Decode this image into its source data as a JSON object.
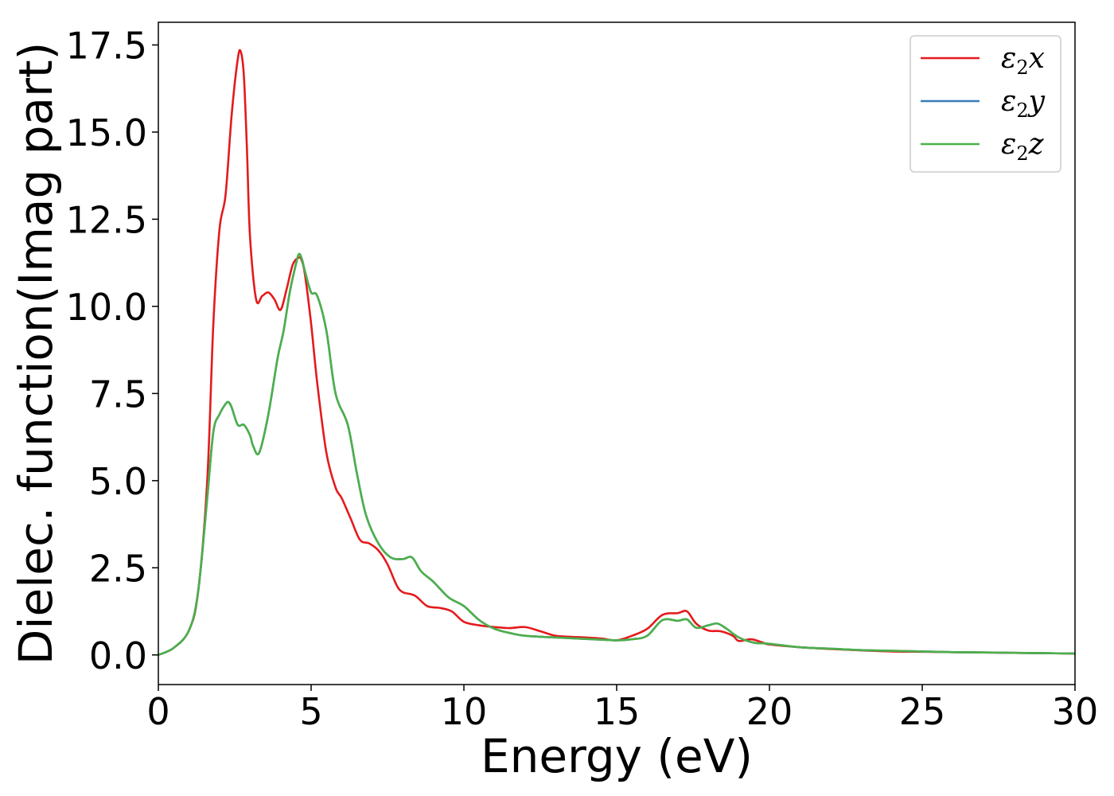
{
  "chart_data": {
    "type": "line",
    "xlabel": "Energy (eV)",
    "ylabel": "Dielec. function(Imag part)",
    "xlim": [
      0,
      30
    ],
    "ylim": [
      -0.85,
      18.15
    ],
    "xticks": [
      0,
      5,
      10,
      15,
      20,
      25,
      30
    ],
    "xtick_labels": [
      "0",
      "5",
      "10",
      "15",
      "20",
      "25",
      "30"
    ],
    "yticks": [
      0,
      2.5,
      5,
      7.5,
      10,
      12.5,
      15,
      17.5
    ],
    "ytick_labels": [
      "0.0",
      "2.5",
      "5.0",
      "7.5",
      "10.0",
      "12.5",
      "15.0",
      "17.5"
    ],
    "grid": false,
    "legend_position": "top-right",
    "series": [
      {
        "name": "ε2x",
        "legend_base": "ε",
        "legend_sub": "2",
        "legend_suffix": "x",
        "color": "#e41a1c",
        "x": [
          0,
          0.5,
          1.0,
          1.3,
          1.6,
          1.8,
          2.0,
          2.2,
          2.4,
          2.6,
          2.7,
          2.8,
          2.9,
          3.0,
          3.2,
          3.4,
          3.6,
          3.8,
          4.0,
          4.2,
          4.4,
          4.6,
          4.7,
          4.8,
          5.0,
          5.2,
          5.5,
          5.8,
          6.0,
          6.3,
          6.6,
          6.9,
          7.2,
          7.5,
          7.8,
          8.0,
          8.4,
          8.8,
          9.2,
          9.6,
          10.0,
          10.5,
          11.0,
          11.5,
          12.0,
          12.5,
          13.0,
          13.5,
          14.0,
          14.5,
          15.0,
          15.5,
          16.0,
          16.5,
          17.0,
          17.3,
          17.6,
          18.0,
          18.4,
          18.8,
          19.0,
          19.4,
          19.8,
          20.0,
          21.0,
          22.0,
          23.0,
          24.0,
          25.0,
          26.0,
          27.0,
          28.0,
          29.0,
          30.0
        ],
        "values": [
          0.0,
          0.2,
          0.7,
          1.8,
          5.0,
          9.5,
          12.2,
          13.2,
          15.5,
          17.1,
          17.3,
          16.6,
          14.5,
          12.0,
          10.2,
          10.3,
          10.4,
          10.2,
          9.9,
          10.5,
          11.2,
          11.4,
          11.3,
          10.9,
          9.5,
          7.8,
          5.8,
          4.8,
          4.5,
          3.9,
          3.3,
          3.2,
          3.0,
          2.6,
          2.0,
          1.8,
          1.7,
          1.4,
          1.35,
          1.25,
          0.95,
          0.85,
          0.8,
          0.77,
          0.8,
          0.68,
          0.55,
          0.52,
          0.5,
          0.47,
          0.42,
          0.55,
          0.75,
          1.15,
          1.2,
          1.25,
          0.9,
          0.7,
          0.68,
          0.55,
          0.4,
          0.45,
          0.35,
          0.3,
          0.22,
          0.17,
          0.13,
          0.1,
          0.09,
          0.08,
          0.07,
          0.06,
          0.05,
          0.04
        ]
      },
      {
        "name": "ε2y",
        "legend_base": "ε",
        "legend_sub": "2",
        "legend_suffix": "y",
        "color": "#377eb8",
        "x": [
          0,
          0.5,
          1.0,
          1.3,
          1.6,
          1.8,
          2.0,
          2.2,
          2.3,
          2.4,
          2.6,
          2.8,
          3.0,
          3.1,
          3.3,
          3.6,
          3.9,
          4.1,
          4.3,
          4.5,
          4.6,
          4.7,
          4.8,
          5.0,
          5.2,
          5.5,
          5.8,
          6.2,
          6.5,
          6.8,
          7.2,
          7.6,
          8.0,
          8.3,
          8.6,
          9.0,
          9.5,
          10.0,
          10.5,
          11.0,
          11.5,
          12.0,
          13.0,
          14.0,
          15.0,
          15.5,
          16.0,
          16.5,
          17.0,
          17.3,
          17.6,
          18.0,
          18.3,
          18.6,
          19.0,
          19.5,
          20.0,
          21.0,
          22.0,
          23.0,
          24.0,
          25.0,
          26.0,
          27.0,
          28.0,
          29.0,
          30.0
        ],
        "values": [
          0.0,
          0.2,
          0.7,
          1.8,
          4.5,
          6.4,
          6.9,
          7.2,
          7.25,
          7.1,
          6.6,
          6.6,
          6.3,
          6.0,
          5.8,
          6.9,
          8.5,
          9.3,
          10.4,
          11.2,
          11.5,
          11.35,
          11.0,
          10.4,
          10.3,
          9.3,
          7.5,
          6.6,
          5.2,
          4.0,
          3.2,
          2.8,
          2.75,
          2.8,
          2.4,
          2.1,
          1.65,
          1.4,
          1.0,
          0.75,
          0.63,
          0.55,
          0.5,
          0.46,
          0.42,
          0.45,
          0.55,
          1.0,
          0.98,
          1.02,
          0.78,
          0.85,
          0.9,
          0.75,
          0.5,
          0.35,
          0.32,
          0.22,
          0.18,
          0.14,
          0.12,
          0.1,
          0.08,
          0.07,
          0.06,
          0.05,
          0.04
        ]
      },
      {
        "name": "ε2z",
        "legend_base": "ε",
        "legend_sub": "2",
        "legend_suffix": "z",
        "color": "#4daf4a",
        "x": [
          0,
          0.5,
          1.0,
          1.3,
          1.6,
          1.8,
          2.0,
          2.2,
          2.3,
          2.4,
          2.6,
          2.8,
          3.0,
          3.1,
          3.3,
          3.6,
          3.9,
          4.1,
          4.3,
          4.5,
          4.6,
          4.7,
          4.8,
          5.0,
          5.2,
          5.5,
          5.8,
          6.2,
          6.5,
          6.8,
          7.2,
          7.6,
          8.0,
          8.3,
          8.6,
          9.0,
          9.5,
          10.0,
          10.5,
          11.0,
          11.5,
          12.0,
          13.0,
          14.0,
          15.0,
          15.5,
          16.0,
          16.5,
          17.0,
          17.3,
          17.6,
          18.0,
          18.3,
          18.6,
          19.0,
          19.5,
          20.0,
          21.0,
          22.0,
          23.0,
          24.0,
          25.0,
          26.0,
          27.0,
          28.0,
          29.0,
          30.0
        ],
        "values": [
          0.0,
          0.2,
          0.7,
          1.8,
          4.5,
          6.4,
          6.9,
          7.2,
          7.25,
          7.1,
          6.6,
          6.6,
          6.3,
          6.0,
          5.8,
          6.9,
          8.5,
          9.3,
          10.4,
          11.2,
          11.5,
          11.35,
          11.0,
          10.4,
          10.3,
          9.3,
          7.5,
          6.6,
          5.2,
          4.0,
          3.2,
          2.8,
          2.75,
          2.8,
          2.4,
          2.1,
          1.65,
          1.4,
          1.0,
          0.75,
          0.63,
          0.55,
          0.5,
          0.46,
          0.42,
          0.45,
          0.55,
          1.0,
          0.98,
          1.02,
          0.78,
          0.85,
          0.9,
          0.75,
          0.5,
          0.35,
          0.32,
          0.22,
          0.18,
          0.14,
          0.12,
          0.1,
          0.08,
          0.07,
          0.06,
          0.05,
          0.04
        ]
      }
    ]
  }
}
